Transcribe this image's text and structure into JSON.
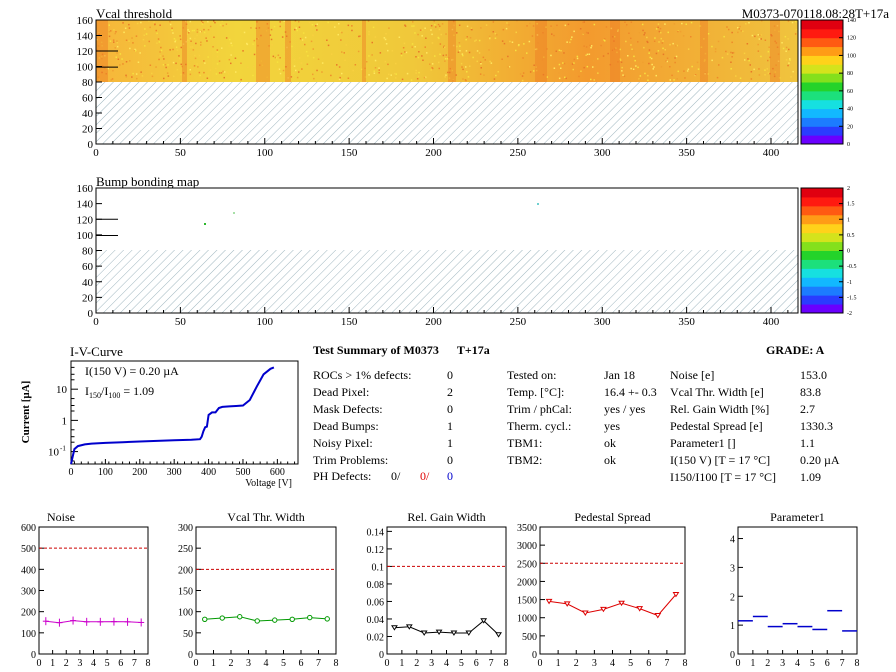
{
  "header_id": "M0373-070118.08:28T+17a",
  "vcal_map": {
    "title": "Vcal threshold",
    "y_ticks": [
      "0",
      "20",
      "40",
      "60",
      "80",
      "100",
      "120",
      "140",
      "160"
    ],
    "x_ticks": [
      "0",
      "50",
      "100",
      "150",
      "200",
      "250",
      "300",
      "350",
      "400"
    ],
    "palette_ticks": [
      "0",
      "20",
      "40",
      "60",
      "80",
      "100",
      "120",
      "140"
    ]
  },
  "bump_map": {
    "title": "Bump bonding map",
    "y_ticks": [
      "0",
      "20",
      "40",
      "60",
      "80",
      "100",
      "120",
      "140",
      "160"
    ],
    "x_ticks": [
      "0",
      "50",
      "100",
      "150",
      "200",
      "250",
      "300",
      "350",
      "400"
    ],
    "palette_ticks": [
      "-2",
      "-1.5",
      "-1",
      "-0.5",
      "0",
      "0.5",
      "1",
      "1.5",
      "2"
    ]
  },
  "iv": {
    "title": "I-V-Curve",
    "annot1": "I(150 V) = 0.20 µA",
    "annot2_a": "I",
    "annot2_sub1": "150",
    "annot2_b": "/I",
    "annot2_sub2": "100",
    "annot2_c": " =  1.09",
    "xlabel": "Voltage [V]",
    "ylabel": "Current [µA]",
    "x_ticks": [
      "0",
      "100",
      "200",
      "300",
      "400",
      "500",
      "600"
    ],
    "y_ticks": [
      "10",
      "1",
      "10"
    ],
    "y_tick_exp": "-1"
  },
  "summary": {
    "title": "Test Summary of M0373",
    "suffix": "T+17a",
    "grade": "GRADE:  A",
    "col1": [
      {
        "label": "ROCs > 1% defects:",
        "value": "0"
      },
      {
        "label": "Dead Pixel:",
        "value": "2"
      },
      {
        "label": "Mask Defects:",
        "value": "0"
      },
      {
        "label": "Dead Bumps:",
        "value": "1"
      },
      {
        "label": "Noisy Pixel:",
        "value": "1"
      },
      {
        "label": "Trim Problems:",
        "value": "0"
      }
    ],
    "ph_label": "PH Defects:",
    "ph_values": [
      "0/",
      "0/",
      "0"
    ],
    "col2": [
      {
        "label": "Tested on:",
        "value": "Jan 18"
      },
      {
        "label": "Temp. [°C]:",
        "value": "16.4 +- 0.3"
      },
      {
        "label": "Trim / phCal:",
        "value": "yes / yes"
      },
      {
        "label": "Therm. cycl.:",
        "value": "yes"
      },
      {
        "label": "TBM1:",
        "value": "ok"
      },
      {
        "label": "TBM2:",
        "value": "ok"
      }
    ],
    "col3": [
      {
        "label": "Noise [e]",
        "value": "153.0"
      },
      {
        "label": "Vcal Thr. Width [e]",
        "value": "83.8"
      },
      {
        "label": "Rel. Gain Width [%]",
        "value": "2.7"
      },
      {
        "label": "Pedestal Spread [e]",
        "value": "1330.3"
      },
      {
        "label": "Parameter1 []",
        "value": "1.1"
      },
      {
        "label": "I(150 V) [T = 17 °C]",
        "value": "0.20 µA"
      },
      {
        "label": "I150/I100 [T = 17 °C]",
        "value": "1.09"
      }
    ]
  },
  "chart_data": [
    {
      "type": "scatter",
      "title": "Noise",
      "x_ticks": [
        "0",
        "1",
        "2",
        "3",
        "4",
        "5",
        "6",
        "7",
        "8"
      ],
      "y_ticks": [
        "0",
        "100",
        "200",
        "300",
        "400",
        "500",
        "600"
      ],
      "ylim": [
        0,
        600
      ],
      "xlim": [
        0,
        8
      ],
      "x": [
        0.5,
        1.5,
        2.5,
        3.5,
        4.5,
        5.5,
        6.5,
        7.5
      ],
      "values": [
        155,
        148,
        158,
        152,
        152,
        153,
        152,
        149
      ],
      "threshold": 500,
      "color": "#cc00cc",
      "style": "line-markers"
    },
    {
      "type": "scatter",
      "title": "Vcal Thr. Width",
      "x_ticks": [
        "0",
        "1",
        "2",
        "3",
        "4",
        "5",
        "6",
        "7",
        "8"
      ],
      "y_ticks": [
        "0",
        "50",
        "100",
        "150",
        "200",
        "250",
        "300"
      ],
      "ylim": [
        0,
        300
      ],
      "xlim": [
        0,
        8
      ],
      "x": [
        0.5,
        1.5,
        2.5,
        3.5,
        4.5,
        5.5,
        6.5,
        7.5
      ],
      "values": [
        82,
        85,
        88,
        78,
        80,
        82,
        86,
        83
      ],
      "threshold": 200,
      "color": "#009900",
      "style": "line-circles"
    },
    {
      "type": "scatter",
      "title": "Rel. Gain Width",
      "x_ticks": [
        "0",
        "1",
        "2",
        "3",
        "4",
        "5",
        "6",
        "7",
        "8"
      ],
      "y_ticks": [
        "0",
        "0.02",
        "0.04",
        "0.06",
        "0.08",
        "0.1",
        "0.12",
        "0.14"
      ],
      "ylim": [
        0,
        0.145
      ],
      "xlim": [
        0,
        8
      ],
      "x": [
        0.5,
        1.5,
        2.5,
        3.5,
        4.5,
        5.5,
        6.5,
        7.5
      ],
      "values": [
        0.03,
        0.031,
        0.024,
        0.025,
        0.024,
        0.024,
        0.038,
        0.022
      ],
      "threshold": 0.1,
      "color": "#000000",
      "style": "line-triangles"
    },
    {
      "type": "scatter",
      "title": "Pedestal Spread",
      "x_ticks": [
        "0",
        "1",
        "2",
        "3",
        "4",
        "5",
        "6",
        "7",
        "8"
      ],
      "y_ticks": [
        "0",
        "500",
        "1000",
        "1500",
        "2000",
        "2500",
        "3000",
        "3500"
      ],
      "ylim": [
        0,
        3500
      ],
      "xlim": [
        0,
        8
      ],
      "x": [
        0.5,
        1.5,
        2.5,
        3.5,
        4.5,
        5.5,
        6.5,
        7.5
      ],
      "values": [
        1450,
        1380,
        1130,
        1230,
        1400,
        1250,
        1060,
        1640
      ],
      "threshold": 2500,
      "color": "#dd0000",
      "style": "line-triangles"
    },
    {
      "type": "scatter",
      "title": "Parameter1",
      "x_ticks": [
        "0",
        "1",
        "2",
        "3",
        "4",
        "5",
        "6",
        "7",
        "8"
      ],
      "y_ticks": [
        "0",
        "1",
        "2",
        "3",
        "4"
      ],
      "ylim": [
        0,
        4.4
      ],
      "xlim": [
        0,
        8
      ],
      "x": [
        0.5,
        1.5,
        2.5,
        3.5,
        4.5,
        5.5,
        6.5,
        7.5
      ],
      "values": [
        1.15,
        1.3,
        0.95,
        1.05,
        0.95,
        0.85,
        1.5,
        0.8
      ],
      "threshold": null,
      "color": "#0000cc",
      "style": "hbars"
    },
    {
      "type": "line",
      "title": "I-V-Curve",
      "xlabel": "Voltage [V]",
      "ylabel": "Current [µA]",
      "log_y": true,
      "xlim": [
        0,
        660
      ],
      "ylim": [
        0.04,
        80
      ],
      "x": [
        0,
        10,
        20,
        40,
        60,
        100,
        150,
        200,
        250,
        300,
        350,
        375,
        380,
        385,
        390,
        395,
        400,
        410,
        420,
        430,
        440,
        460,
        480,
        500,
        520,
        540,
        560,
        580,
        590
      ],
      "values": [
        0.04,
        0.12,
        0.15,
        0.17,
        0.18,
        0.19,
        0.2,
        0.21,
        0.22,
        0.23,
        0.24,
        0.25,
        0.3,
        0.45,
        0.6,
        0.63,
        1.5,
        1.8,
        1.8,
        2.5,
        2.7,
        2.8,
        2.9,
        3.0,
        4.5,
        12,
        30,
        45,
        50
      ],
      "color": "#0000cc"
    }
  ]
}
